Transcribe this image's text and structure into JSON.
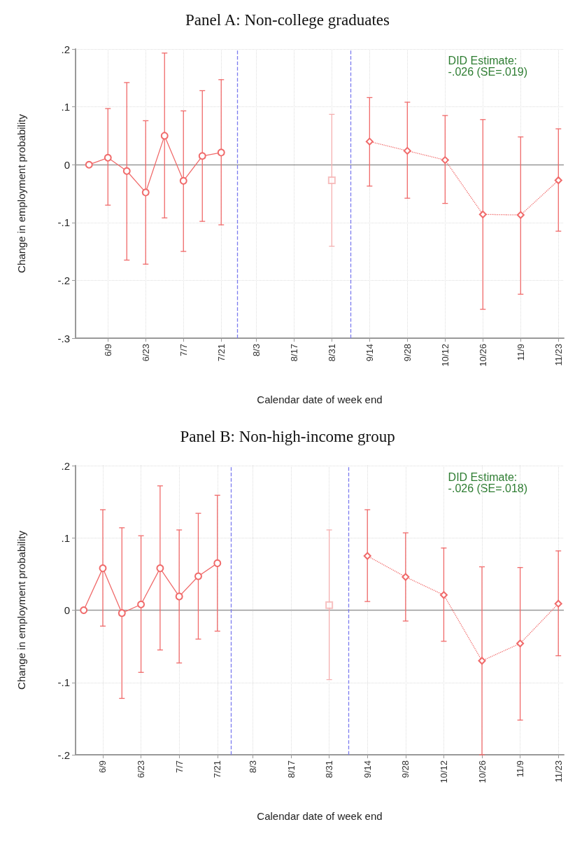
{
  "chart_data": [
    {
      "type": "line",
      "title": "Panel A: Non-college graduates",
      "xlabel": "Calendar date of week end",
      "ylabel": "Change in employment probability",
      "xlim": [
        "--05-28",
        "--11-25"
      ],
      "xticks": [
        {
          "value": "--06-09",
          "label": "6/9"
        },
        {
          "value": "--06-23",
          "label": "6/23"
        },
        {
          "value": "--07-07",
          "label": "7/7"
        },
        {
          "value": "--07-21",
          "label": "7/21"
        },
        {
          "value": "--08-03",
          "label": "8/3"
        },
        {
          "value": "--08-17",
          "label": "8/17"
        },
        {
          "value": "--08-31",
          "label": "8/31"
        },
        {
          "value": "--09-14",
          "label": "9/14"
        },
        {
          "value": "--09-28",
          "label": "9/28"
        },
        {
          "value": "--10-12",
          "label": "10/12"
        },
        {
          "value": "--10-26",
          "label": "10/26"
        },
        {
          "value": "--11-09",
          "label": "11/9"
        },
        {
          "value": "--11-23",
          "label": "11/23"
        }
      ],
      "ylim": [
        -0.3,
        0.2
      ],
      "yticks": [
        {
          "value": -0.3,
          "label": "-.3"
        },
        {
          "value": -0.2,
          "label": "-.2"
        },
        {
          "value": -0.1,
          "label": "-.1"
        },
        0,
        {
          "value": 0.1,
          "label": ".1"
        },
        {
          "value": 0.2,
          "label": ".2"
        }
      ],
      "grid": true,
      "series": [
        {
          "type": "line",
          "color": "#f06a6a",
          "marker": "circle",
          "line_style": "solid",
          "x": [
            "--06-02",
            "--06-09",
            "--06-16",
            "--06-23",
            "--06-30",
            "--07-07",
            "--07-14",
            "--07-21"
          ],
          "values": [
            0,
            0.012,
            -0.011,
            -0.048,
            0.05,
            -0.028,
            0.015,
            0.021
          ],
          "errors": [
            null,
            [
              -0.07,
              0.097
            ],
            [
              -0.165,
              0.142
            ],
            [
              -0.172,
              0.076
            ],
            [
              -0.092,
              0.193
            ],
            [
              -0.15,
              0.093
            ],
            [
              -0.098,
              0.128
            ],
            [
              -0.104,
              0.147
            ]
          ]
        },
        {
          "type": "scatter",
          "color": "#f5b0b0",
          "marker": "square",
          "x": [
            "--08-31"
          ],
          "values": [
            -0.027
          ],
          "errors": [
            [
              -0.141,
              0.087
            ]
          ]
        },
        {
          "type": "line",
          "color": "#f06a6a",
          "marker": "diamond",
          "line_style": "dotted",
          "x": [
            "--09-14",
            "--09-28",
            "--10-12",
            "--10-26",
            "--11-09",
            "--11-23"
          ],
          "values": [
            0.04,
            0.024,
            0.008,
            -0.086,
            -0.087,
            -0.027
          ],
          "errors": [
            [
              -0.037,
              0.116
            ],
            [
              -0.058,
              0.108
            ],
            [
              -0.067,
              0.085
            ],
            [
              -0.25,
              0.078
            ],
            [
              -0.224,
              0.048
            ],
            [
              -0.115,
              0.062
            ]
          ]
        }
      ],
      "ref_lines": [
        {
          "axis": "y",
          "value": 0,
          "color": "#999999",
          "line_style": "solid"
        },
        {
          "axis": "x",
          "value": "--07-27",
          "color": "#7b7bef",
          "line_style": "dashed"
        },
        {
          "axis": "x",
          "value": "--09-07",
          "color": "#7b7bef",
          "line_style": "dashed"
        }
      ],
      "annotations": [
        "DID Estimate:\n-.026 (SE=.019)"
      ]
    },
    {
      "type": "line",
      "title": "Panel B: Non-high-income group",
      "xlabel": "Calendar date of week end",
      "ylabel": "Change in employment probability",
      "xlim": [
        "--05-30",
        "--11-25"
      ],
      "xticks": [
        {
          "value": "--06-09",
          "label": "6/9"
        },
        {
          "value": "--06-23",
          "label": "6/23"
        },
        {
          "value": "--07-07",
          "label": "7/7"
        },
        {
          "value": "--07-21",
          "label": "7/21"
        },
        {
          "value": "--08-03",
          "label": "8/3"
        },
        {
          "value": "--08-17",
          "label": "8/17"
        },
        {
          "value": "--08-31",
          "label": "8/31"
        },
        {
          "value": "--09-14",
          "label": "9/14"
        },
        {
          "value": "--09-28",
          "label": "9/28"
        },
        {
          "value": "--10-12",
          "label": "10/12"
        },
        {
          "value": "--10-26",
          "label": "10/26"
        },
        {
          "value": "--11-09",
          "label": "11/9"
        },
        {
          "value": "--11-23",
          "label": "11/23"
        }
      ],
      "ylim": [
        -0.2,
        0.2
      ],
      "yticks": [
        {
          "value": -0.2,
          "label": "-.2"
        },
        {
          "value": -0.1,
          "label": "-.1"
        },
        0,
        {
          "value": 0.1,
          "label": ".1"
        },
        {
          "value": 0.2,
          "label": ".2"
        }
      ],
      "grid": true,
      "series": [
        {
          "type": "line",
          "color": "#f06a6a",
          "marker": "circle",
          "line_style": "solid",
          "x": [
            "--06-02",
            "--06-09",
            "--06-16",
            "--06-23",
            "--06-30",
            "--07-07",
            "--07-14",
            "--07-21"
          ],
          "values": [
            0,
            0.058,
            -0.004,
            0.008,
            0.058,
            0.019,
            0.047,
            0.065
          ],
          "errors": [
            null,
            [
              -0.022,
              0.139
            ],
            [
              -0.122,
              0.114
            ],
            [
              -0.086,
              0.103
            ],
            [
              -0.055,
              0.172
            ],
            [
              -0.073,
              0.111
            ],
            [
              -0.04,
              0.134
            ],
            [
              -0.029,
              0.159
            ]
          ]
        },
        {
          "type": "scatter",
          "color": "#f5b0b0",
          "marker": "square",
          "x": [
            "--08-31"
          ],
          "values": [
            0.007
          ],
          "errors": [
            [
              -0.096,
              0.111
            ]
          ]
        },
        {
          "type": "line",
          "color": "#f06a6a",
          "marker": "diamond",
          "line_style": "dotted",
          "x": [
            "--09-14",
            "--09-28",
            "--10-12",
            "--10-26",
            "--11-09",
            "--11-23"
          ],
          "values": [
            0.075,
            0.046,
            0.021,
            -0.07,
            -0.046,
            0.009
          ],
          "errors": [
            [
              0.012,
              0.139
            ],
            [
              -0.015,
              0.107
            ],
            [
              -0.043,
              0.086
            ],
            [
              -0.2,
              0.06
            ],
            [
              -0.152,
              0.059
            ],
            [
              -0.063,
              0.082
            ]
          ]
        }
      ],
      "ref_lines": [
        {
          "axis": "y",
          "value": 0,
          "color": "#999999",
          "line_style": "solid"
        },
        {
          "axis": "x",
          "value": "--07-26",
          "color": "#7b7bef",
          "line_style": "dashed"
        },
        {
          "axis": "x",
          "value": "--09-07",
          "color": "#7b7bef",
          "line_style": "dashed"
        }
      ],
      "annotations": [
        "DID Estimate:\n-.026 (SE=.018)"
      ]
    }
  ]
}
